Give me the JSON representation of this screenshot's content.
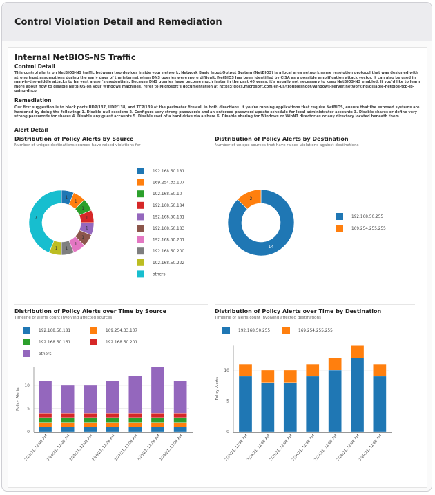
{
  "header": {
    "title": "Control Violation Detail and Remediation"
  },
  "control": {
    "title": "Internal NetBIOS-NS Traffic",
    "detail_heading": "Control Detail",
    "detail_text": "This control alerts on NetBIOS-NS traffic between two devices inside your network. Network Basic Input/Output System (NetBIOS) is a local area network name resolution protocol that was designed with strong trust assumptions during the early days of the internet when DNS queries were more difficult. NetBIOS has been identified by CISA as a possible amplification attack vector. It can also be used in man-in-the-middle attacks to harvest a user's credentials. Because DNS queries have become much faster in the past 40 years, it's usually not necessary to keep NetBIOS-NS enabled. If you'd like to learn more about how to disable NetBIOS on your Windows machines, refer to Microsoft's documentation at https://docs.microsoft.com/en-us/troubleshoot/windows-server/networking/disable-netbios-tcp-ip-using-dhcp",
    "remediation_heading": "Remediation",
    "remediation_text": "Our first suggestion is to block ports UDP/137, UDP/138, and TCP/139 at the perimeter firewall in both directions. If you're running applications that require NetBIOS, ensure that the exposed systems are hardened by doing the following: 1. Disable null sessions 2. Configure very strong passwords and an enforced password update schedule for local administrator accounts 3. Disable shares or define very strong passwords for shares 4. Disable any guest accounts 5. Disable root of a hard drive via a share 6. Disable sharing for Windows or WinNT directories or any directory located beneath them",
    "alert_heading": "Alert Detail"
  },
  "chart_data": [
    {
      "type": "pie",
      "title": "Distribution of Policy Alerts by Source",
      "subtitle": "Number of unique destinations sources have raised violations for",
      "categories": [
        "192.168.50.181",
        "169.254.33.107",
        "192.168.50.10",
        "192.168.50.184",
        "192.168.50.161",
        "192.168.50.183",
        "192.168.50.201",
        "192.168.50.200",
        "192.168.50.222",
        "others"
      ],
      "values": [
        1,
        1,
        1,
        1,
        1,
        1,
        1,
        1,
        1,
        7
      ],
      "colors": [
        "#1f77b4",
        "#ff7f0e",
        "#2ca02c",
        "#d62728",
        "#9467bd",
        "#8c564b",
        "#e377c2",
        "#7f7f7f",
        "#bcbd22",
        "#17becf"
      ],
      "legend": "right"
    },
    {
      "type": "pie",
      "title": "Distribution of Policy Alerts by Destination",
      "subtitle": "Number of unique sources that have raised violations against destinations",
      "categories": [
        "192.168.50.255",
        "169.254.255.255"
      ],
      "values": [
        14,
        2
      ],
      "colors": [
        "#1f77b4",
        "#ff7f0e"
      ],
      "legend": "right"
    },
    {
      "type": "bar",
      "stacked": true,
      "title": "Distribution of Policy Alerts over Time by Source",
      "subtitle": "Timeline of alerts count involving affected sources",
      "ylabel": "Policy Alerts",
      "ylim": [
        0,
        14
      ],
      "yticks": [
        0,
        5,
        10
      ],
      "grid": true,
      "legend": "top",
      "categories": [
        "7/23/21, 12:00 AM",
        "7/24/21, 12:00 AM",
        "7/25/21, 12:00 AM",
        "7/26/21, 12:00 AM",
        "7/27/21, 12:00 AM",
        "7/28/21, 12:00 AM",
        "7/29/21, 12:00 AM"
      ],
      "series": [
        {
          "name": "192.168.50.181",
          "color": "#1f77b4",
          "values": [
            1,
            1,
            1,
            1,
            1,
            1,
            1
          ]
        },
        {
          "name": "169.254.33.107",
          "color": "#ff7f0e",
          "values": [
            1,
            1,
            1,
            1,
            1,
            1,
            1
          ]
        },
        {
          "name": "192.168.50.161",
          "color": "#2ca02c",
          "values": [
            1,
            1,
            1,
            1,
            1,
            1,
            1
          ]
        },
        {
          "name": "192.168.50.201",
          "color": "#d62728",
          "values": [
            1,
            1,
            1,
            1,
            1,
            1,
            1
          ]
        },
        {
          "name": "others",
          "color": "#9467bd",
          "values": [
            7,
            6,
            6,
            7,
            8,
            10,
            7
          ]
        }
      ]
    },
    {
      "type": "bar",
      "stacked": true,
      "title": "Distribution of Policy Alerts over Time by Destination",
      "subtitle": "Timeline of alerts count involving affected destinations",
      "ylabel": "Policy Alerts",
      "ylim": [
        0,
        14
      ],
      "yticks": [
        0,
        5,
        10
      ],
      "grid": true,
      "legend": "top",
      "categories": [
        "7/23/21, 12:00 AM",
        "7/24/21, 12:00 AM",
        "7/25/21, 12:00 AM",
        "7/26/21, 12:00 AM",
        "7/27/21, 12:00 AM",
        "7/28/21, 12:00 AM",
        "7/29/21, 12:00 AM"
      ],
      "series": [
        {
          "name": "192.168.50.255",
          "color": "#1f77b4",
          "values": [
            9,
            8,
            8,
            9,
            10,
            12,
            9
          ]
        },
        {
          "name": "169.254.255.255",
          "color": "#ff7f0e",
          "values": [
            2,
            2,
            2,
            2,
            2,
            2,
            2
          ]
        }
      ]
    }
  ]
}
